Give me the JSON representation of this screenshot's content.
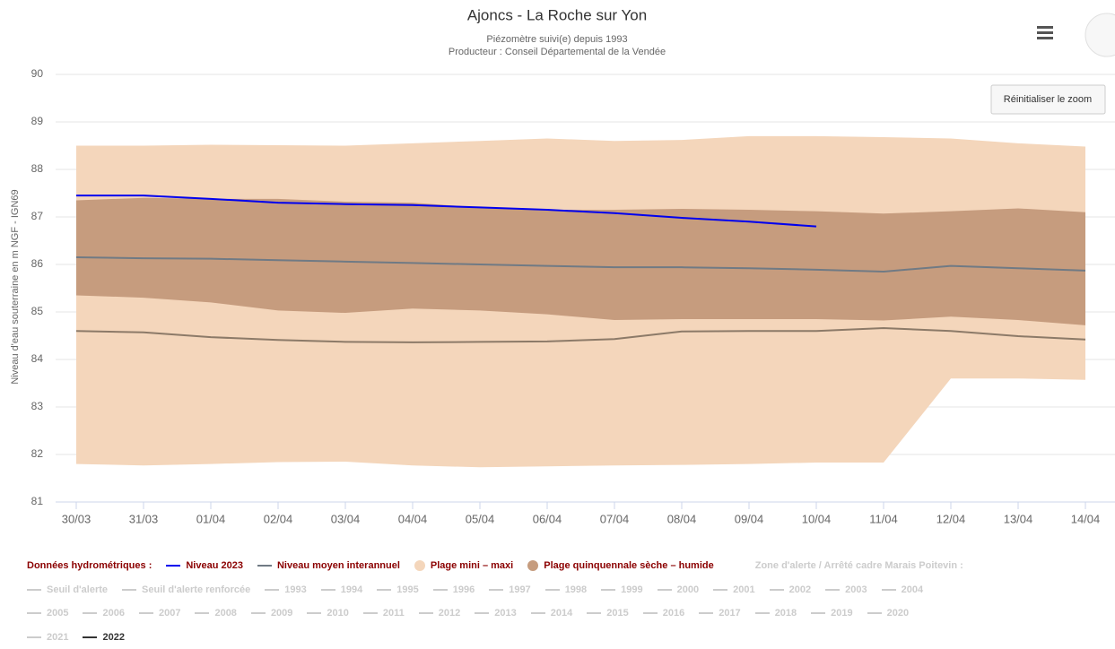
{
  "chart_data": {
    "type": "line",
    "title": "Ajoncs - La Roche sur Yon",
    "subtitle": [
      "Piézomètre suivi(e) depuis 1993",
      "Producteur : Conseil Départemental de la Vendée"
    ],
    "y_label": "Niveau d'eau souterraine en m NGF - IGN69",
    "reset_zoom": "Réinitialiser le zoom",
    "categories": [
      "30/03",
      "31/03",
      "01/04",
      "02/04",
      "03/04",
      "04/04",
      "05/04",
      "06/04",
      "07/04",
      "08/04",
      "09/04",
      "10/04",
      "11/04",
      "12/04",
      "13/04",
      "14/04"
    ],
    "ylim": [
      81,
      90
    ],
    "yticks": [
      81,
      82,
      83,
      84,
      85,
      86,
      87,
      88,
      89,
      90
    ],
    "grid": true,
    "legend_headings": [
      "Données hydrométriques :",
      "Zone d'alerte / Arrêté cadre Marais Poitevin :"
    ],
    "series": [
      {
        "name": "Niveau 2023",
        "color": "#0000ee",
        "type": "line",
        "values": [
          87.45,
          87.45,
          87.38,
          87.3,
          87.27,
          87.25,
          87.2,
          87.15,
          87.08,
          86.98,
          86.9,
          86.8,
          null,
          null,
          null,
          null
        ]
      },
      {
        "name": "Niveau moyen interannuel",
        "color": "#707a84",
        "type": "line",
        "values": [
          86.15,
          86.13,
          86.12,
          86.09,
          86.06,
          86.03,
          86.0,
          85.97,
          85.94,
          85.94,
          85.92,
          85.89,
          85.85,
          85.97,
          85.92,
          85.87
        ]
      },
      {
        "name": "Plage mini – maxi",
        "color": "#f4d6bb",
        "type": "arearange",
        "high": [
          88.5,
          88.5,
          88.52,
          88.51,
          88.5,
          88.55,
          88.6,
          88.65,
          88.6,
          88.62,
          88.7,
          88.7,
          88.68,
          88.65,
          88.55,
          88.48
        ],
        "low": [
          81.8,
          81.77,
          81.8,
          81.84,
          81.85,
          81.77,
          81.73,
          81.75,
          81.77,
          81.78,
          81.8,
          81.83,
          81.83,
          83.6,
          83.6,
          83.57
        ]
      },
      {
        "name": "Plage quinquennale sèche – humide",
        "color": "#c69c7e",
        "type": "arearange",
        "high": [
          87.35,
          87.4,
          87.38,
          87.38,
          87.32,
          87.3,
          87.2,
          87.15,
          87.15,
          87.17,
          87.15,
          87.12,
          87.07,
          87.12,
          87.18,
          87.1
        ],
        "low": [
          85.35,
          85.3,
          85.2,
          85.03,
          84.98,
          85.07,
          85.03,
          84.95,
          84.83,
          84.85,
          84.85,
          84.85,
          84.82,
          84.9,
          84.83,
          84.72
        ]
      },
      {
        "name": "2022",
        "color": "#8c7a68",
        "type": "line",
        "values": [
          84.6,
          84.57,
          84.47,
          84.41,
          84.37,
          84.36,
          84.37,
          84.38,
          84.43,
          84.59,
          84.6,
          84.6,
          84.66,
          84.6,
          84.49,
          84.42
        ]
      }
    ],
    "legend_hidden": [
      "Seuil d'alerte",
      "Seuil d'alerte renforcée",
      "1993",
      "1994",
      "1995",
      "1996",
      "1997",
      "1998",
      "1999",
      "2000",
      "2001",
      "2002",
      "2003",
      "2004",
      "2005",
      "2006",
      "2007",
      "2008",
      "2009",
      "2010",
      "2011",
      "2012",
      "2013",
      "2014",
      "2015",
      "2016",
      "2017",
      "2018",
      "2019",
      "2020",
      "2021"
    ]
  }
}
